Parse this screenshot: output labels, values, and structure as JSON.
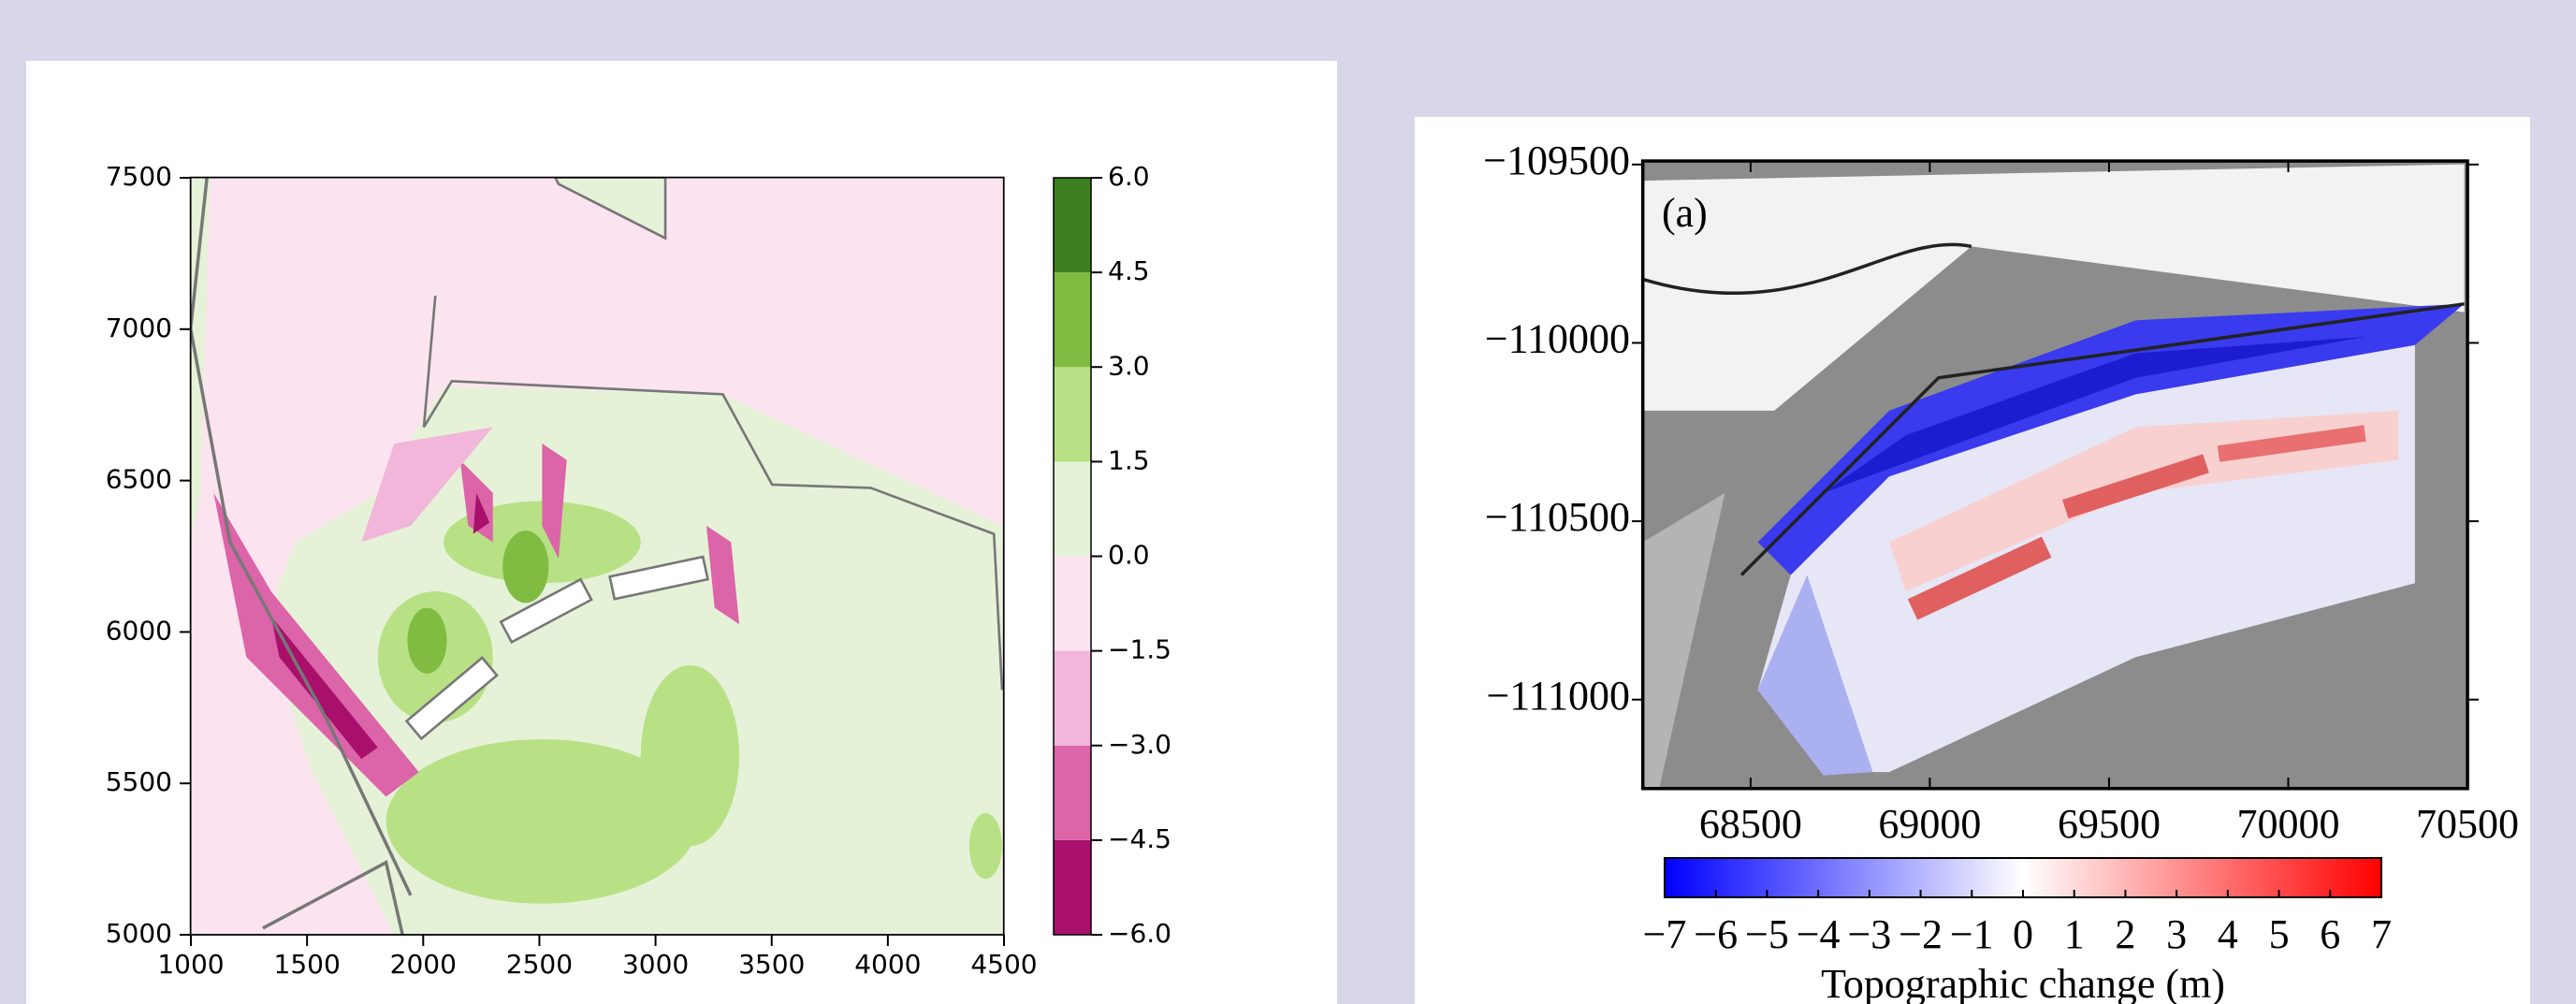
{
  "chart_data": [
    {
      "type": "contour",
      "xlim": [
        1000,
        4500
      ],
      "xticks": [
        1000,
        1500,
        2000,
        2500,
        3000,
        3500,
        4000,
        4500
      ],
      "ylim": [
        5000,
        7500
      ],
      "yticks": [
        5000,
        5500,
        6000,
        6500,
        7000,
        7500
      ],
      "cticks": [
        {
          "value": -6,
          "label": "−6.0"
        },
        {
          "value": -4.5,
          "label": "−4.5"
        },
        {
          "value": -3,
          "label": "−3.0"
        },
        {
          "value": -1.5,
          "label": "−1.5"
        },
        {
          "value": 0,
          "label": "0.0"
        },
        {
          "value": 1.5,
          "label": "1.5"
        },
        {
          "value": 3,
          "label": "3.0"
        },
        {
          "value": 4.5,
          "label": "4.5"
        },
        {
          "value": 6,
          "label": "6.0"
        }
      ],
      "colors": [
        "#a8106b",
        "#dc64a8",
        "#f1b6da",
        "#fbe4ef",
        "#e6f2d8",
        "#b8e186",
        "#7fbc41",
        "#3e7f22"
      ]
    },
    {
      "type": "image",
      "annotation": "(a)",
      "xlim": [
        68200,
        70500
      ],
      "xticks": [
        68500,
        69000,
        69500,
        70000,
        70500
      ],
      "ylim": [
        -111250,
        -109490
      ],
      "yticks": [
        {
          "value": -109500,
          "label": "−109500"
        },
        {
          "value": -110000,
          "label": "−110000"
        },
        {
          "value": -110500,
          "label": "−110500"
        },
        {
          "value": -111000,
          "label": "−111000"
        }
      ],
      "clim": [
        -7,
        7
      ],
      "cticks": [
        {
          "value": -7,
          "label": "−7"
        },
        {
          "value": -6,
          "label": "−6"
        },
        {
          "value": -5,
          "label": "−5"
        },
        {
          "value": -4,
          "label": "−4"
        },
        {
          "value": -3,
          "label": "−3"
        },
        {
          "value": -2,
          "label": "−2"
        },
        {
          "value": -1,
          "label": "−1"
        },
        0,
        1,
        2,
        3,
        4,
        5,
        6,
        7
      ],
      "colors": [
        "#0000ff",
        "#ffffff",
        "#ff0000"
      ],
      "colorbar_label": "Topographic change (m)"
    }
  ]
}
